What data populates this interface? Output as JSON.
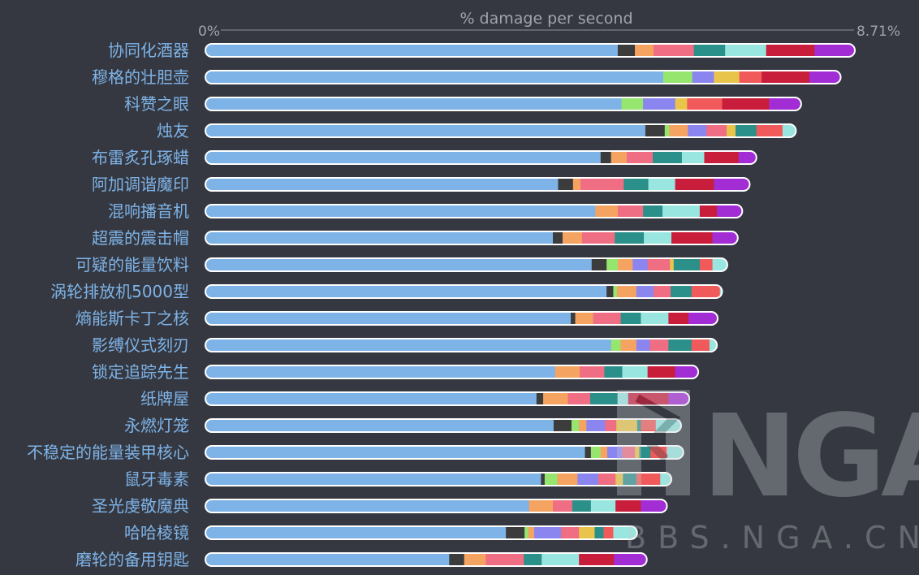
{
  "chart_data": {
    "type": "bar",
    "orientation": "horizontal",
    "stacked": true,
    "title": "% damage per second",
    "x_min_label": "0%",
    "x_max_label": "8.71%",
    "xlim": [
      0,
      8.71
    ],
    "segment_palette": {
      "s0": "#7eb3e8",
      "s1": "#3c3c3c",
      "s2": "#f4a460",
      "s3": "#95e56e",
      "s4": "#8b85f0",
      "s5": "#e8c54a",
      "s6": "#f06e84",
      "s7": "#2b8f8a",
      "s8": "#98e6df",
      "s9": "#f05a5a",
      "s10": "#c81e3c",
      "s11": "#a22dd4"
    },
    "bars": [
      {
        "label": "协同化酒器",
        "segments": [
          [
            "s0",
            5.53
          ],
          [
            "s1",
            0.23
          ],
          [
            "s2",
            0.25
          ],
          [
            "s6",
            0.54
          ],
          [
            "s7",
            0.42
          ],
          [
            "s8",
            0.55
          ],
          [
            "s10",
            0.65
          ],
          [
            "s11",
            0.54
          ]
        ]
      },
      {
        "label": "穆格的壮胆壶",
        "segments": [
          [
            "s0",
            6.14
          ],
          [
            "s3",
            0.39
          ],
          [
            "s4",
            0.29
          ],
          [
            "s5",
            0.34
          ],
          [
            "s9",
            0.3
          ],
          [
            "s10",
            0.64
          ],
          [
            "s11",
            0.42
          ]
        ]
      },
      {
        "label": "科赞之眼",
        "segments": [
          [
            "s0",
            5.58
          ],
          [
            "s3",
            0.29
          ],
          [
            "s4",
            0.43
          ],
          [
            "s5",
            0.16
          ],
          [
            "s9",
            0.47
          ],
          [
            "s10",
            0.63
          ],
          [
            "s11",
            0.43
          ]
        ]
      },
      {
        "label": "烛友",
        "segments": [
          [
            "s0",
            5.9
          ],
          [
            "s1",
            0.26
          ],
          [
            "s3",
            0.06
          ],
          [
            "s2",
            0.25
          ],
          [
            "s4",
            0.25
          ],
          [
            "s6",
            0.27
          ],
          [
            "s5",
            0.12
          ],
          [
            "s7",
            0.28
          ],
          [
            "s9",
            0.35
          ],
          [
            "s8",
            0.18
          ]
        ]
      },
      {
        "label": "布雷炙孔琢蜡",
        "segments": [
          [
            "s0",
            5.3
          ],
          [
            "s1",
            0.14
          ],
          [
            "s2",
            0.21
          ],
          [
            "s6",
            0.35
          ],
          [
            "s7",
            0.39
          ],
          [
            "s8",
            0.3
          ],
          [
            "s10",
            0.46
          ],
          [
            "s11",
            0.24
          ]
        ]
      },
      {
        "label": "阿加调谐魔印",
        "segments": [
          [
            "s0",
            4.73
          ],
          [
            "s1",
            0.2
          ],
          [
            "s2",
            0.1
          ],
          [
            "s6",
            0.58
          ],
          [
            "s7",
            0.33
          ],
          [
            "s8",
            0.36
          ],
          [
            "s10",
            0.52
          ],
          [
            "s11",
            0.48
          ]
        ]
      },
      {
        "label": "混响播音机",
        "segments": [
          [
            "s0",
            5.23
          ],
          [
            "s2",
            0.3
          ],
          [
            "s6",
            0.34
          ],
          [
            "s7",
            0.26
          ],
          [
            "s8",
            0.5
          ],
          [
            "s10",
            0.23
          ],
          [
            "s11",
            0.34
          ]
        ]
      },
      {
        "label": "超震的震击帽",
        "segments": [
          [
            "s0",
            4.66
          ],
          [
            "s1",
            0.13
          ],
          [
            "s2",
            0.26
          ],
          [
            "s6",
            0.44
          ],
          [
            "s7",
            0.39
          ],
          [
            "s8",
            0.37
          ],
          [
            "s10",
            0.55
          ],
          [
            "s11",
            0.34
          ]
        ]
      },
      {
        "label": "可疑的能量饮料",
        "segments": [
          [
            "s0",
            5.18
          ],
          [
            "s1",
            0.2
          ],
          [
            "s3",
            0.15
          ],
          [
            "s2",
            0.2
          ],
          [
            "s4",
            0.2
          ],
          [
            "s6",
            0.3
          ],
          [
            "s5",
            0.05
          ],
          [
            "s7",
            0.35
          ],
          [
            "s9",
            0.17
          ],
          [
            "s8",
            0.2
          ]
        ]
      },
      {
        "label": "涡轮排放机5000型",
        "segments": [
          [
            "s0",
            5.38
          ],
          [
            "s1",
            0.09
          ],
          [
            "s3",
            0.05
          ],
          [
            "s2",
            0.26
          ],
          [
            "s4",
            0.23
          ],
          [
            "s6",
            0.23
          ],
          [
            "s7",
            0.28
          ],
          [
            "s9",
            0.38
          ],
          [
            "s8",
            0.03
          ]
        ]
      },
      {
        "label": "熵能斯卡丁之核",
        "segments": [
          [
            "s0",
            4.9
          ],
          [
            "s1",
            0.06
          ],
          [
            "s2",
            0.24
          ],
          [
            "s6",
            0.37
          ],
          [
            "s7",
            0.27
          ],
          [
            "s8",
            0.37
          ],
          [
            "s10",
            0.27
          ],
          [
            "s11",
            0.39
          ]
        ]
      },
      {
        "label": "影缚仪式刻刃",
        "segments": [
          [
            "s0",
            5.44
          ],
          [
            "s3",
            0.13
          ],
          [
            "s2",
            0.21
          ],
          [
            "s4",
            0.18
          ],
          [
            "s6",
            0.25
          ],
          [
            "s7",
            0.31
          ],
          [
            "s9",
            0.24
          ],
          [
            "s8",
            0.1
          ]
        ]
      },
      {
        "label": "锁定追踪先生",
        "segments": [
          [
            "s0",
            4.69
          ],
          [
            "s2",
            0.33
          ],
          [
            "s6",
            0.33
          ],
          [
            "s7",
            0.24
          ],
          [
            "s8",
            0.34
          ],
          [
            "s10",
            0.37
          ],
          [
            "s11",
            0.31
          ]
        ]
      },
      {
        "label": "纸牌屋",
        "segments": [
          [
            "s0",
            4.44
          ],
          [
            "s1",
            0.09
          ],
          [
            "s2",
            0.33
          ],
          [
            "s6",
            0.3
          ],
          [
            "s7",
            0.37
          ],
          [
            "s8",
            0.14
          ],
          [
            "s10",
            0.54
          ],
          [
            "s11",
            0.28
          ]
        ]
      },
      {
        "label": "永燃灯笼",
        "segments": [
          [
            "s0",
            4.67
          ],
          [
            "s1",
            0.24
          ],
          [
            "s3",
            0.1
          ],
          [
            "s2",
            0.1
          ],
          [
            "s4",
            0.25
          ],
          [
            "s6",
            0.15
          ],
          [
            "s5",
            0.28
          ],
          [
            "s7",
            0.05
          ],
          [
            "s9",
            0.2
          ],
          [
            "s8",
            0.34
          ]
        ]
      },
      {
        "label": "不稳定的能量装甲核心",
        "segments": [
          [
            "s0",
            5.09
          ],
          [
            "s1",
            0.08
          ],
          [
            "s3",
            0.13
          ],
          [
            "s2",
            0.09
          ],
          [
            "s4",
            0.2
          ],
          [
            "s6",
            0.17
          ],
          [
            "s5",
            0.06
          ],
          [
            "s7",
            0.15
          ],
          [
            "s9",
            0.22
          ],
          [
            "s8",
            0.22
          ]
        ]
      },
      {
        "label": "鼠牙毒素",
        "segments": [
          [
            "s0",
            4.5
          ],
          [
            "s1",
            0.05
          ],
          [
            "s3",
            0.17
          ],
          [
            "s2",
            0.27
          ],
          [
            "s4",
            0.28
          ],
          [
            "s6",
            0.23
          ],
          [
            "s5",
            0.1
          ],
          [
            "s7",
            0.18
          ],
          [
            "s9",
            0.32
          ],
          [
            "s8",
            0.15
          ]
        ]
      },
      {
        "label": "圣光虔敬魔典",
        "segments": [
          [
            "s0",
            4.34
          ],
          [
            "s2",
            0.32
          ],
          [
            "s6",
            0.26
          ],
          [
            "s7",
            0.25
          ],
          [
            "s8",
            0.33
          ],
          [
            "s10",
            0.34
          ],
          [
            "s11",
            0.35
          ]
        ]
      },
      {
        "label": "哈哈棱镜",
        "segments": [
          [
            "s0",
            4.03
          ],
          [
            "s1",
            0.25
          ],
          [
            "s3",
            0.05
          ],
          [
            "s2",
            0.08
          ],
          [
            "s4",
            0.36
          ],
          [
            "s6",
            0.24
          ],
          [
            "s5",
            0.21
          ],
          [
            "s7",
            0.12
          ],
          [
            "s9",
            0.13
          ],
          [
            "s8",
            0.32
          ]
        ]
      },
      {
        "label": "磨轮的备用钥匙",
        "segments": [
          [
            "s0",
            3.27
          ],
          [
            "s1",
            0.2
          ],
          [
            "s2",
            0.29
          ],
          [
            "s6",
            0.51
          ],
          [
            "s7",
            0.24
          ],
          [
            "s8",
            0.5
          ],
          [
            "s10",
            0.47
          ],
          [
            "s11",
            0.44
          ]
        ]
      }
    ]
  },
  "watermark": {
    "logo_text": "NGA",
    "site_text": "BBS.NGA.CN"
  }
}
